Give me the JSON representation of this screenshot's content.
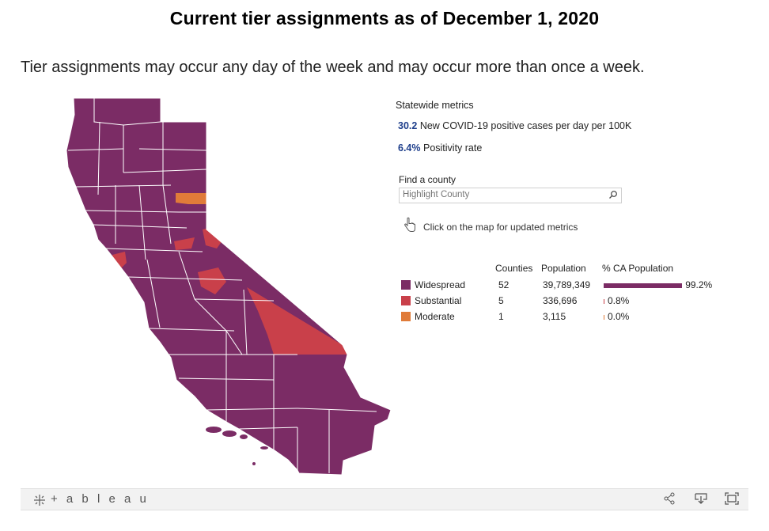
{
  "page": {
    "title": "Current tier assignments as of December 1, 2020",
    "subtitle": "Tier assignments may occur any day of the week and may occur more than once a week."
  },
  "metrics": {
    "heading": "Statewide metrics",
    "cases_value": "30.2",
    "cases_label": "New COVID-19 positive cases per day per 100K",
    "positivity_value": "6.4%",
    "positivity_label": "Positivity rate"
  },
  "search": {
    "label": "Find a county",
    "placeholder": "Highlight County"
  },
  "hint": "Click on the map for updated metrics",
  "legend": {
    "headers": {
      "counties": "Counties",
      "population": "Population",
      "pct": "% CA Population"
    },
    "tiers": [
      {
        "name": "Widespread",
        "counties": "52",
        "population": "39,789,349",
        "pct_label": "99.2%",
        "pct": 99.2,
        "color": "#7b2c65"
      },
      {
        "name": "Substantial",
        "counties": "5",
        "population": "336,696",
        "pct_label": "0.8%",
        "pct": 0.8,
        "color": "#c9404a"
      },
      {
        "name": "Moderate",
        "counties": "1",
        "population": "3,115",
        "pct_label": "0.0%",
        "pct": 0.0,
        "color": "#e07b39"
      }
    ]
  },
  "map": {
    "colors": {
      "widespread": "#7b2c65",
      "substantial": "#c9404a",
      "moderate": "#e07b39",
      "border": "#ffffff"
    }
  },
  "footer": {
    "brand": "+ a b l e a u",
    "icons": [
      "share-icon",
      "download-icon",
      "fullscreen-icon"
    ]
  }
}
